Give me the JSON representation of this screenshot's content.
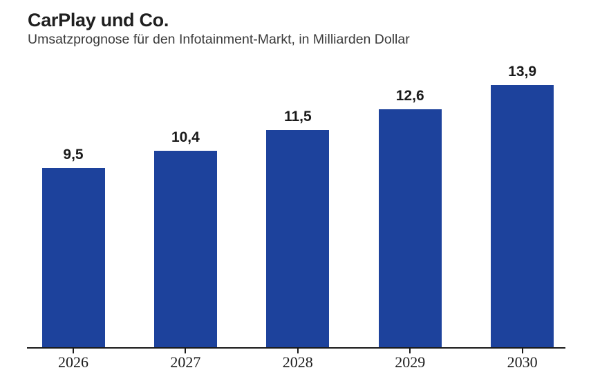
{
  "header": {
    "title": "CarPlay und Co.",
    "subtitle": "Umsatzprognose für den Infotainment-Markt, in Milliarden Dollar"
  },
  "chart_data": {
    "type": "bar",
    "title": "CarPlay und Co.",
    "subtitle": "Umsatzprognose für den Infotainment-Markt, in Milliarden Dollar",
    "categories": [
      "2026",
      "2027",
      "2028",
      "2029",
      "2030"
    ],
    "values": [
      9.5,
      10.4,
      11.5,
      12.6,
      13.9
    ],
    "value_labels": [
      "9,5",
      "10,4",
      "11,5",
      "12,6",
      "13,9"
    ],
    "xlabel": "",
    "ylabel": "in Milliarden Dollar",
    "ylim": [
      0,
      14.5
    ],
    "grid": false,
    "legend": false,
    "y_axis_visible": false,
    "value_label_position": "above-bar",
    "decimal_separator": ",",
    "colors": {
      "bar": "#1d429c",
      "axis": "#1a1a1a",
      "title": "#1f1f1f",
      "subtitle": "#3a3a3a",
      "value_label": "#1a1a1a",
      "tick_label": "#1b1b1b"
    }
  }
}
